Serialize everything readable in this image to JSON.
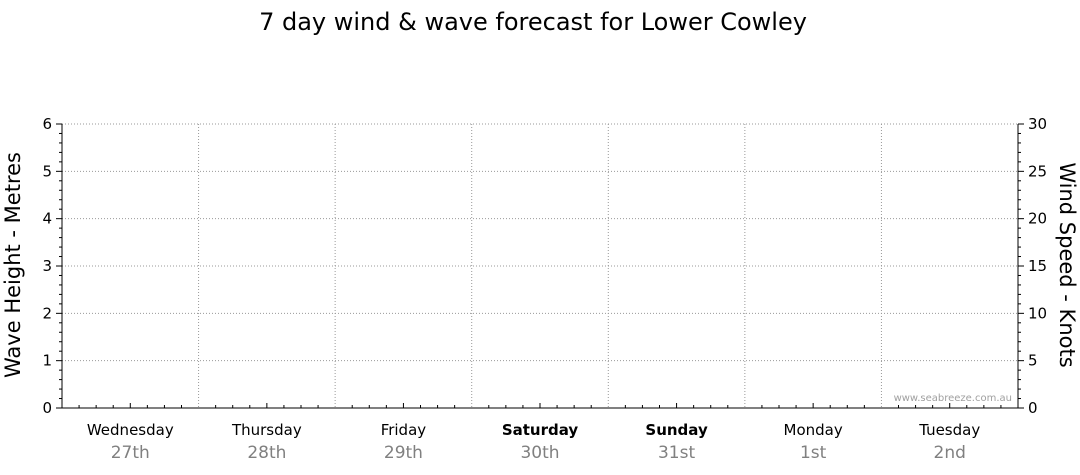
{
  "chart_data": {
    "type": "line",
    "title": "7 day wind & wave forecast for Lower Cowley",
    "y_left": {
      "label": "Wave Height - Metres",
      "range": [
        0,
        6
      ],
      "ticks": [
        "0",
        "1",
        "2",
        "3",
        "4",
        "5",
        "6"
      ]
    },
    "y_right": {
      "label": "Wind Speed - Knots",
      "range": [
        0,
        30
      ],
      "ticks": [
        "0",
        "5",
        "10",
        "15",
        "20",
        "25",
        "30"
      ]
    },
    "days": [
      {
        "name": "Wednesday",
        "date": "27th",
        "weekend": false
      },
      {
        "name": "Thursday",
        "date": "28th",
        "weekend": false
      },
      {
        "name": "Friday",
        "date": "29th",
        "weekend": false
      },
      {
        "name": "Saturday",
        "date": "30th",
        "weekend": true
      },
      {
        "name": "Sunday",
        "date": "31st",
        "weekend": true
      },
      {
        "name": "Monday",
        "date": "1st",
        "weekend": false
      },
      {
        "name": "Tuesday",
        "date": "2nd",
        "weekend": false
      }
    ],
    "series": [],
    "grid": true,
    "watermark": "www.seabreeze.com.au"
  }
}
